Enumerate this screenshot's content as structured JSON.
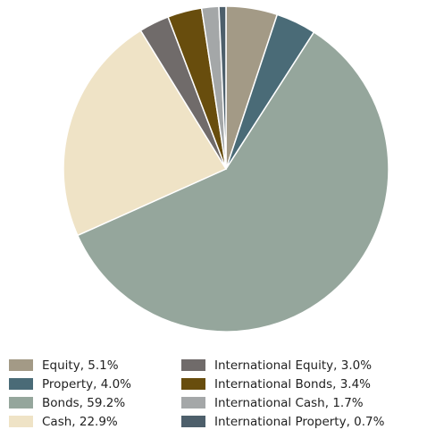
{
  "chart_data": {
    "type": "pie",
    "start_angle_deg": 0,
    "direction": "clockwise",
    "slices": [
      {
        "label": "Equity",
        "value": 5.1,
        "color": "#a39a86"
      },
      {
        "label": "Property",
        "value": 4.0,
        "color": "#4a6b77"
      },
      {
        "label": "Bonds",
        "value": 59.2,
        "color": "#95a69c"
      },
      {
        "label": "Cash",
        "value": 22.9,
        "color": "#efe3c6"
      },
      {
        "label": "International Equity",
        "value": 3.0,
        "color": "#706b6a"
      },
      {
        "label": "International Bonds",
        "value": 3.4,
        "color": "#684d0d"
      },
      {
        "label": "International Cash",
        "value": 1.7,
        "color": "#a4a7a8"
      },
      {
        "label": "International Property",
        "value": 0.7,
        "color": "#4d5f6b"
      }
    ],
    "legend": {
      "position": "bottom",
      "columns": [
        [
          {
            "text": "Equity, 5.1%",
            "color": "#a39a86"
          },
          {
            "text": "Property, 4.0%",
            "color": "#4a6b77"
          },
          {
            "text": "Bonds, 59.2%",
            "color": "#95a69c"
          },
          {
            "text": "Cash, 22.9%",
            "color": "#efe3c6"
          }
        ],
        [
          {
            "text": "International Equity, 3.0%",
            "color": "#706b6a"
          },
          {
            "text": "International Bonds, 3.4%",
            "color": "#684d0d"
          },
          {
            "text": "International Cash, 1.7%",
            "color": "#a4a7a8"
          },
          {
            "text": "International Property, 0.7%",
            "color": "#4d5f6b"
          }
        ]
      ]
    }
  }
}
